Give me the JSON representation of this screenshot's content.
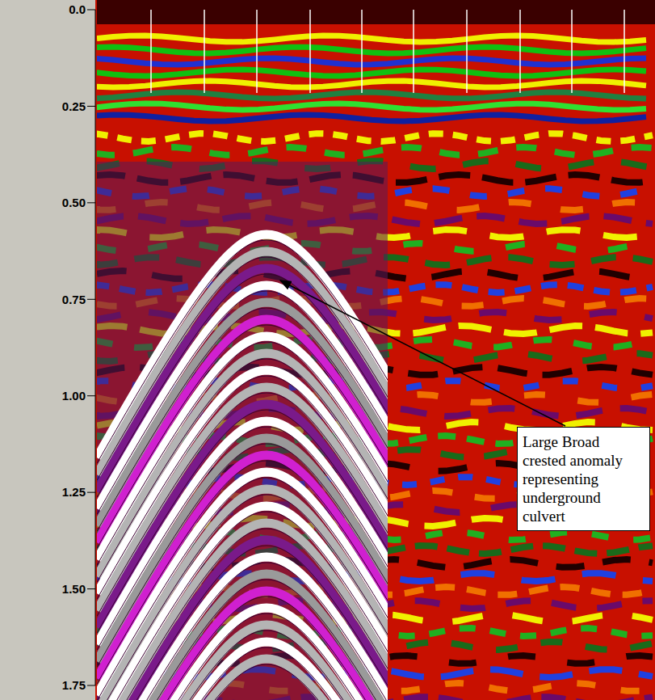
{
  "chart_data": {
    "type": "radargram",
    "ylim": [
      0,
      1.75
    ],
    "yticks": [
      {
        "value": 0,
        "label": "0.0"
      },
      0.25,
      {
        "value": 0.5,
        "label": "0.50"
      },
      0.75,
      {
        "value": 1,
        "label": "1.00"
      },
      1.25,
      {
        "value": 1.5,
        "label": "1.50"
      },
      1.75
    ],
    "annotations": [
      {
        "text": "Large Broad crested anomaly representing underground culvert"
      }
    ]
  }
}
